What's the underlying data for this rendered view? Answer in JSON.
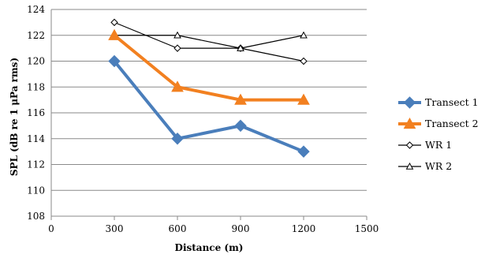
{
  "chart_data": {
    "type": "line",
    "xlabel": "Distance (m)",
    "ylabel": "SPL (dB re 1 μPa rms)",
    "xlim": [
      0,
      1500
    ],
    "ylim": [
      108,
      124
    ],
    "x_ticks": [
      0,
      300,
      600,
      900,
      1200,
      1500
    ],
    "y_ticks": [
      108,
      110,
      112,
      114,
      116,
      118,
      120,
      122,
      124
    ],
    "grid": "horizontal",
    "legend_position": "right",
    "series": [
      {
        "name": "Transect 1",
        "color": "#4a7ebb",
        "marker": "diamond-filled",
        "line_width": 4,
        "x": [
          300,
          600,
          900,
          1200
        ],
        "y": [
          120,
          114,
          115,
          113
        ]
      },
      {
        "name": "Transect 2",
        "color": "#f28020",
        "marker": "triangle-filled",
        "line_width": 4,
        "x": [
          300,
          600,
          900,
          1200
        ],
        "y": [
          122,
          118,
          117,
          117
        ]
      },
      {
        "name": "WR 1",
        "color": "#000000",
        "marker": "diamond-open",
        "line_width": 1.2,
        "x": [
          300,
          600,
          900,
          1200
        ],
        "y": [
          123,
          121,
          121,
          120
        ]
      },
      {
        "name": "WR 2",
        "color": "#000000",
        "marker": "triangle-open",
        "line_width": 1.2,
        "x": [
          300,
          600,
          900,
          1200
        ],
        "y": [
          122,
          122,
          121,
          122
        ]
      }
    ]
  }
}
